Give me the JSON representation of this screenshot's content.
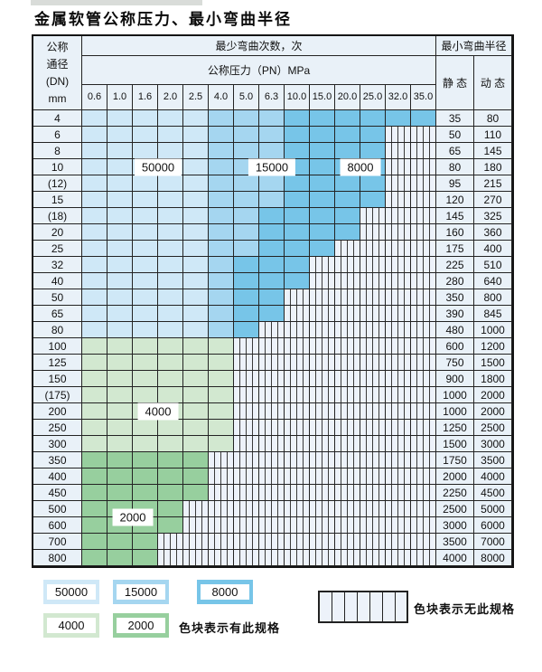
{
  "page": {
    "title": "金属软管公称压力、最小弯曲半径"
  },
  "table": {
    "header": {
      "dn_lines": [
        "公称",
        "通径",
        "(DN)",
        "mm"
      ],
      "bend_cycles": "最少弯曲次数，次",
      "pressure": "公称压力（PN）MPa",
      "bend_radius": "最小弯曲半径",
      "static": "静 态",
      "dynamic": "动 态",
      "pressure_columns": [
        "0.6",
        "1.0",
        "1.6",
        "2.0",
        "2.5",
        "4.0",
        "5.0",
        "6.3",
        "10.0",
        "15.0",
        "20.0",
        "25.0",
        "32.0",
        "35.0"
      ]
    },
    "zone_colors": {
      "b1": "#cfe8f7",
      "b2": "#a5d6f0",
      "b3": "#77c5e8",
      "g1": "#d2e8d0",
      "g2": "#97cf9e"
    },
    "zone_cycle_values": {
      "b1": "50000",
      "b2": "15000",
      "b3": "8000",
      "g1": "4000",
      "g2": "2000"
    },
    "rows": [
      {
        "dn": "4",
        "zones": [
          [
            "b1",
            5
          ],
          [
            "b2",
            3
          ],
          [
            "b3",
            6
          ]
        ],
        "static": "35",
        "dynamic": "80"
      },
      {
        "dn": "6",
        "zones": [
          [
            "b1",
            5
          ],
          [
            "b2",
            3
          ],
          [
            "b3",
            4
          ]
        ],
        "static": "50",
        "dynamic": "110"
      },
      {
        "dn": "8",
        "zones": [
          [
            "b1",
            5
          ],
          [
            "b2",
            3
          ],
          [
            "b3",
            4
          ]
        ],
        "static": "65",
        "dynamic": "145"
      },
      {
        "dn": "10",
        "zones": [
          [
            "b1",
            5
          ],
          [
            "b2",
            3
          ],
          [
            "b3",
            4
          ]
        ],
        "static": "80",
        "dynamic": "180"
      },
      {
        "dn": "(12)",
        "zones": [
          [
            "b1",
            5
          ],
          [
            "b2",
            3
          ],
          [
            "b3",
            4
          ]
        ],
        "static": "95",
        "dynamic": "215"
      },
      {
        "dn": "15",
        "zones": [
          [
            "b1",
            5
          ],
          [
            "b2",
            3
          ],
          [
            "b3",
            4
          ]
        ],
        "static": "120",
        "dynamic": "270"
      },
      {
        "dn": "(18)",
        "zones": [
          [
            "b1",
            5
          ],
          [
            "b2",
            2
          ],
          [
            "b3",
            4
          ]
        ],
        "static": "145",
        "dynamic": "325"
      },
      {
        "dn": "20",
        "zones": [
          [
            "b1",
            5
          ],
          [
            "b2",
            2
          ],
          [
            "b3",
            4
          ]
        ],
        "static": "160",
        "dynamic": "360"
      },
      {
        "dn": "25",
        "zones": [
          [
            "b1",
            5
          ],
          [
            "b2",
            2
          ],
          [
            "b3",
            3
          ]
        ],
        "static": "175",
        "dynamic": "400"
      },
      {
        "dn": "32",
        "zones": [
          [
            "b1",
            5
          ],
          [
            "b2",
            1
          ],
          [
            "b3",
            3
          ]
        ],
        "static": "225",
        "dynamic": "510"
      },
      {
        "dn": "40",
        "zones": [
          [
            "b1",
            5
          ],
          [
            "b2",
            1
          ],
          [
            "b3",
            3
          ]
        ],
        "static": "280",
        "dynamic": "640"
      },
      {
        "dn": "50",
        "zones": [
          [
            "b1",
            5
          ],
          [
            "b2",
            1
          ],
          [
            "b3",
            2
          ]
        ],
        "static": "350",
        "dynamic": "800"
      },
      {
        "dn": "65",
        "zones": [
          [
            "b1",
            5
          ],
          [
            "b2",
            1
          ],
          [
            "b3",
            2
          ]
        ],
        "static": "390",
        "dynamic": "845"
      },
      {
        "dn": "80",
        "zones": [
          [
            "b1",
            5
          ],
          [
            "b2",
            1
          ],
          [
            "b3",
            1
          ]
        ],
        "static": "480",
        "dynamic": "1000"
      },
      {
        "dn": "100",
        "zones": [
          [
            "g1",
            6
          ]
        ],
        "static": "600",
        "dynamic": "1200"
      },
      {
        "dn": "125",
        "zones": [
          [
            "g1",
            6
          ]
        ],
        "static": "750",
        "dynamic": "1500"
      },
      {
        "dn": "150",
        "zones": [
          [
            "g1",
            6
          ]
        ],
        "static": "900",
        "dynamic": "1800"
      },
      {
        "dn": "(175)",
        "zones": [
          [
            "g1",
            6
          ]
        ],
        "static": "1000",
        "dynamic": "2000"
      },
      {
        "dn": "200",
        "zones": [
          [
            "g1",
            6
          ]
        ],
        "static": "1000",
        "dynamic": "2000"
      },
      {
        "dn": "250",
        "zones": [
          [
            "g1",
            6
          ]
        ],
        "static": "1250",
        "dynamic": "2500"
      },
      {
        "dn": "300",
        "zones": [
          [
            "g1",
            6
          ]
        ],
        "static": "1500",
        "dynamic": "3000"
      },
      {
        "dn": "350",
        "zones": [
          [
            "g2",
            5
          ]
        ],
        "static": "1750",
        "dynamic": "3500"
      },
      {
        "dn": "400",
        "zones": [
          [
            "g2",
            5
          ]
        ],
        "static": "2000",
        "dynamic": "4000"
      },
      {
        "dn": "450",
        "zones": [
          [
            "g2",
            5
          ]
        ],
        "static": "2250",
        "dynamic": "4500"
      },
      {
        "dn": "500",
        "zones": [
          [
            "g2",
            4
          ]
        ],
        "static": "2500",
        "dynamic": "5000"
      },
      {
        "dn": "600",
        "zones": [
          [
            "g2",
            4
          ]
        ],
        "static": "3000",
        "dynamic": "6000"
      },
      {
        "dn": "700",
        "zones": [
          [
            "g2",
            3
          ]
        ],
        "static": "3500",
        "dynamic": "7000"
      },
      {
        "dn": "800",
        "zones": [
          [
            "g2",
            3
          ]
        ],
        "static": "4000",
        "dynamic": "8000"
      }
    ],
    "zone_labels": [
      {
        "text": "50000",
        "anchor_row": "10",
        "anchor_cols": [
          3,
          4
        ]
      },
      {
        "text": "15000",
        "anchor_row": "10",
        "anchor_cols": [
          8,
          8
        ]
      },
      {
        "text": "8000",
        "anchor_row": "10",
        "anchor_cols": [
          11,
          12
        ]
      },
      {
        "text": "4000",
        "anchor_row": "200",
        "anchor_cols": [
          3,
          4
        ]
      },
      {
        "text": "2000",
        "anchor_row": "500|600",
        "anchor_cols": [
          2,
          3
        ]
      }
    ]
  },
  "legend": {
    "items_blue": [
      {
        "label": "50000",
        "zone": "b1"
      },
      {
        "label": "15000",
        "zone": "b2"
      },
      {
        "label": "8000",
        "zone": "b3"
      }
    ],
    "items_green": [
      {
        "label": "4000",
        "zone": "g1"
      },
      {
        "label": "2000",
        "zone": "g2"
      }
    ],
    "has_spec_note": "色块表示有此规格",
    "no_spec_note": "色块表示无此规格"
  }
}
